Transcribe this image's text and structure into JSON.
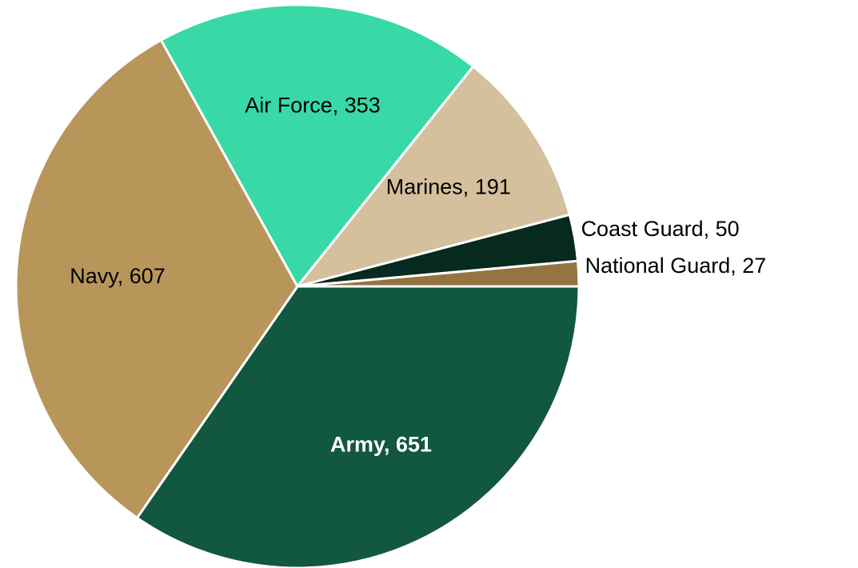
{
  "chart_data": {
    "type": "pie",
    "values": [
      651,
      607,
      353,
      191,
      50,
      27
    ],
    "value_labels": [
      "Army, 651",
      "Navy, 607",
      "Air Force, 353",
      "Marines, 191",
      "Coast Guard, 50",
      "National Guard, 27"
    ],
    "colors": [
      "#12573f",
      "#b8965a",
      "#38d9a6",
      "#d4c09c",
      "#062a1e",
      "#957443"
    ]
  }
}
